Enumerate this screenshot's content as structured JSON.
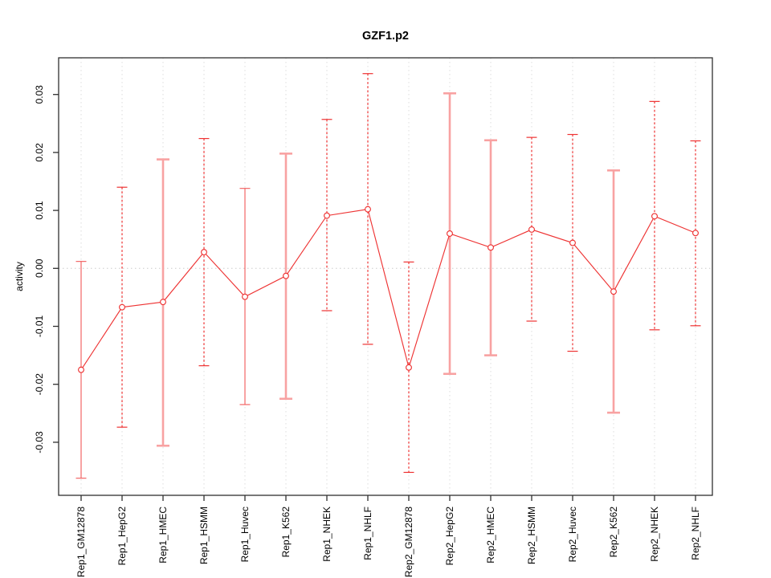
{
  "chart_data": {
    "type": "line",
    "title": "GZF1.p2",
    "ylabel": "activity",
    "xlabel": "",
    "grid": "vertical dotted line per category plus dotted zero line",
    "legend_position": "none",
    "categories": [
      "Rep1_GM12878",
      "Rep1_HepG2",
      "Rep1_HMEC",
      "Rep1_HSMM",
      "Rep1_Huvec",
      "Rep1_K562",
      "Rep1_NHEK",
      "Rep1_NHLF",
      "Rep2_GM12878",
      "Rep2_HepG2",
      "Rep2_HMEC",
      "Rep2_HSMM",
      "Rep2_Huvec",
      "Rep2_K562",
      "Rep2_NHEK",
      "Rep2_NHLF"
    ],
    "series": [
      {
        "name": "activity",
        "values": [
          -0.0175,
          -0.0067,
          -0.0058,
          0.0028,
          -0.0049,
          -0.0013,
          0.0091,
          0.0102,
          -0.0171,
          0.006,
          0.0036,
          0.0067,
          0.0044,
          -0.004,
          0.009,
          0.0061
        ],
        "error_high": [
          0.0012,
          0.014,
          0.0188,
          0.0224,
          0.0138,
          0.0198,
          0.0257,
          0.0336,
          0.0011,
          0.0302,
          0.0221,
          0.0226,
          0.0231,
          0.0169,
          0.0288,
          0.022
        ],
        "error_low": [
          -0.0362,
          -0.0274,
          -0.0306,
          -0.0168,
          -0.0235,
          -0.0225,
          -0.0073,
          -0.0131,
          -0.0352,
          -0.0182,
          -0.015,
          -0.0091,
          -0.0143,
          -0.0249,
          -0.0106,
          -0.0099
        ],
        "error_bar_styles": [
          "solid",
          "dashed",
          "thick",
          "dashed",
          "solid",
          "thick",
          "dashed",
          "dashed",
          "dashed",
          "thick",
          "thick",
          "dashed",
          "dashed",
          "thick",
          "dashed",
          "dashed"
        ]
      }
    ],
    "ytick_labels": [
      "0.03",
      "0.02",
      "0.01",
      "0.00",
      "-0.01",
      "-0.02",
      "-0.03"
    ],
    "ytick_values": [
      0.03,
      0.02,
      0.01,
      0.0,
      -0.01,
      -0.02,
      -0.03
    ],
    "ylim": [
      -0.0385,
      0.0355
    ],
    "colors": {
      "point": "#ee3333",
      "line": "#ee3333",
      "error_bar_solid": "#f26666",
      "error_bar_dashed": "#ee3333",
      "error_bar_thick": "#f8a2a2",
      "gridline": "#dcdcdc",
      "zero_line": "#cccccc",
      "box": "#2f2f2f",
      "text": "#000000"
    }
  }
}
